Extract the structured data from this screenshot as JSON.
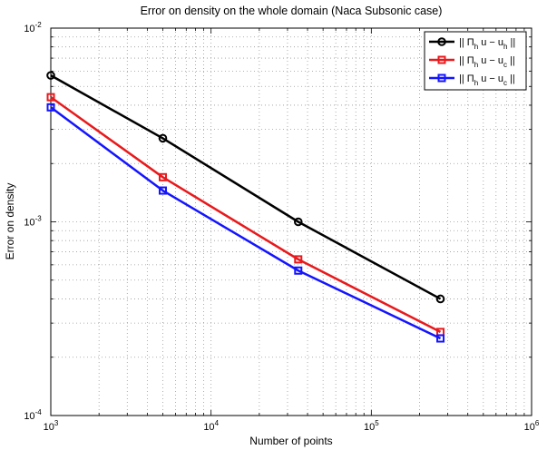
{
  "chart_data": {
    "type": "line",
    "title": "Error on density on the whole domain (Naca Subsonic case)",
    "xlabel": "Number of points",
    "ylabel": "Error on density",
    "xscale": "log",
    "yscale": "log",
    "xlim": [
      1000,
      1000000
    ],
    "ylim": [
      0.0001,
      0.01
    ],
    "x_ticks": [
      {
        "value": 1000,
        "base": "10",
        "exp": "3"
      },
      {
        "value": 10000,
        "base": "10",
        "exp": "4"
      },
      {
        "value": 100000,
        "base": "10",
        "exp": "5"
      },
      {
        "value": 1000000,
        "base": "10",
        "exp": "6"
      }
    ],
    "y_ticks": [
      {
        "value": 0.0001,
        "base": "10",
        "exp": "-4"
      },
      {
        "value": 0.001,
        "base": "10",
        "exp": "-3"
      },
      {
        "value": 0.01,
        "base": "10",
        "exp": "-2"
      }
    ],
    "grid": true,
    "legend_position": "top-right",
    "x": [
      1000,
      5000,
      35000,
      270000
    ],
    "series": [
      {
        "name": "|| Πh u − uh ||",
        "legend": {
          "pre": "|| Π",
          "sub1": "h",
          "mid": " u − u",
          "sub2": "h",
          "post": " ||"
        },
        "color": "#000000",
        "marker": "circle",
        "values": [
          0.0057,
          0.0027,
          0.001,
          0.0004
        ]
      },
      {
        "name": "|| Πh u − uc ||",
        "legend": {
          "pre": "|| Π",
          "sub1": "h",
          "mid": " u − u",
          "sub2": "c",
          "post": " ||"
        },
        "color": "#e8191c",
        "marker": "square",
        "values": [
          0.0044,
          0.0017,
          0.00064,
          0.00027
        ]
      },
      {
        "name": "|| Πh u − uc ||",
        "legend": {
          "pre": "|| Π",
          "sub1": "h",
          "mid": " u − u",
          "sub2": "c",
          "post": " ||"
        },
        "color": "#1414ff",
        "marker": "square",
        "values": [
          0.0039,
          0.00145,
          0.00056,
          0.00025
        ]
      }
    ]
  }
}
